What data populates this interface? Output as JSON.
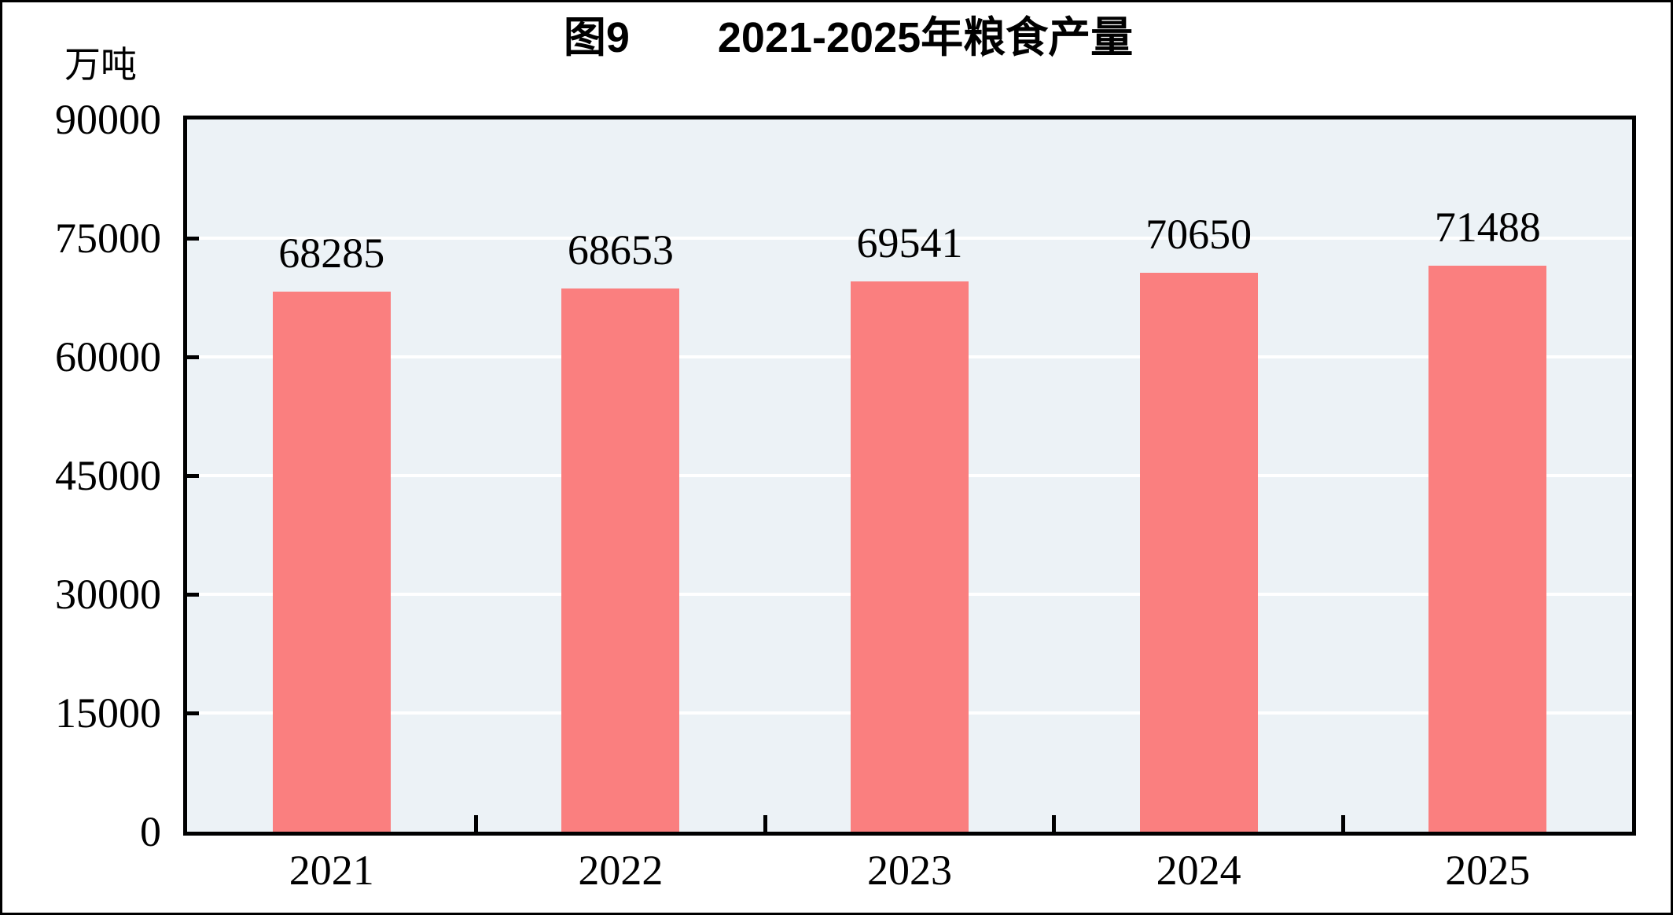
{
  "figure": {
    "figure_label": "图9",
    "title": "2021-2025年粮食产量",
    "unit_label": "万吨"
  },
  "chart_data": {
    "type": "bar",
    "title": "图9 2021-2025年粮食产量",
    "subtitle": "",
    "xlabel": "",
    "ylabel": "万吨",
    "categories": [
      "2021",
      "2022",
      "2023",
      "2024",
      "2025"
    ],
    "values": [
      68285,
      68653,
      69541,
      70650,
      71488
    ],
    "data_labels_shown": true,
    "ylim": [
      0,
      90000
    ],
    "yticks": [
      0,
      15000,
      30000,
      45000,
      60000,
      75000,
      90000
    ],
    "grid": "horizontal white gridlines at each y tick",
    "legend_position": "none",
    "colors": {
      "bar": "#FA7F7F",
      "plot_background": "#ECF2F6",
      "gridline": "#FFFFFF",
      "axis_frame": "#000000",
      "text": "#000000",
      "page_border": "#000000"
    }
  }
}
